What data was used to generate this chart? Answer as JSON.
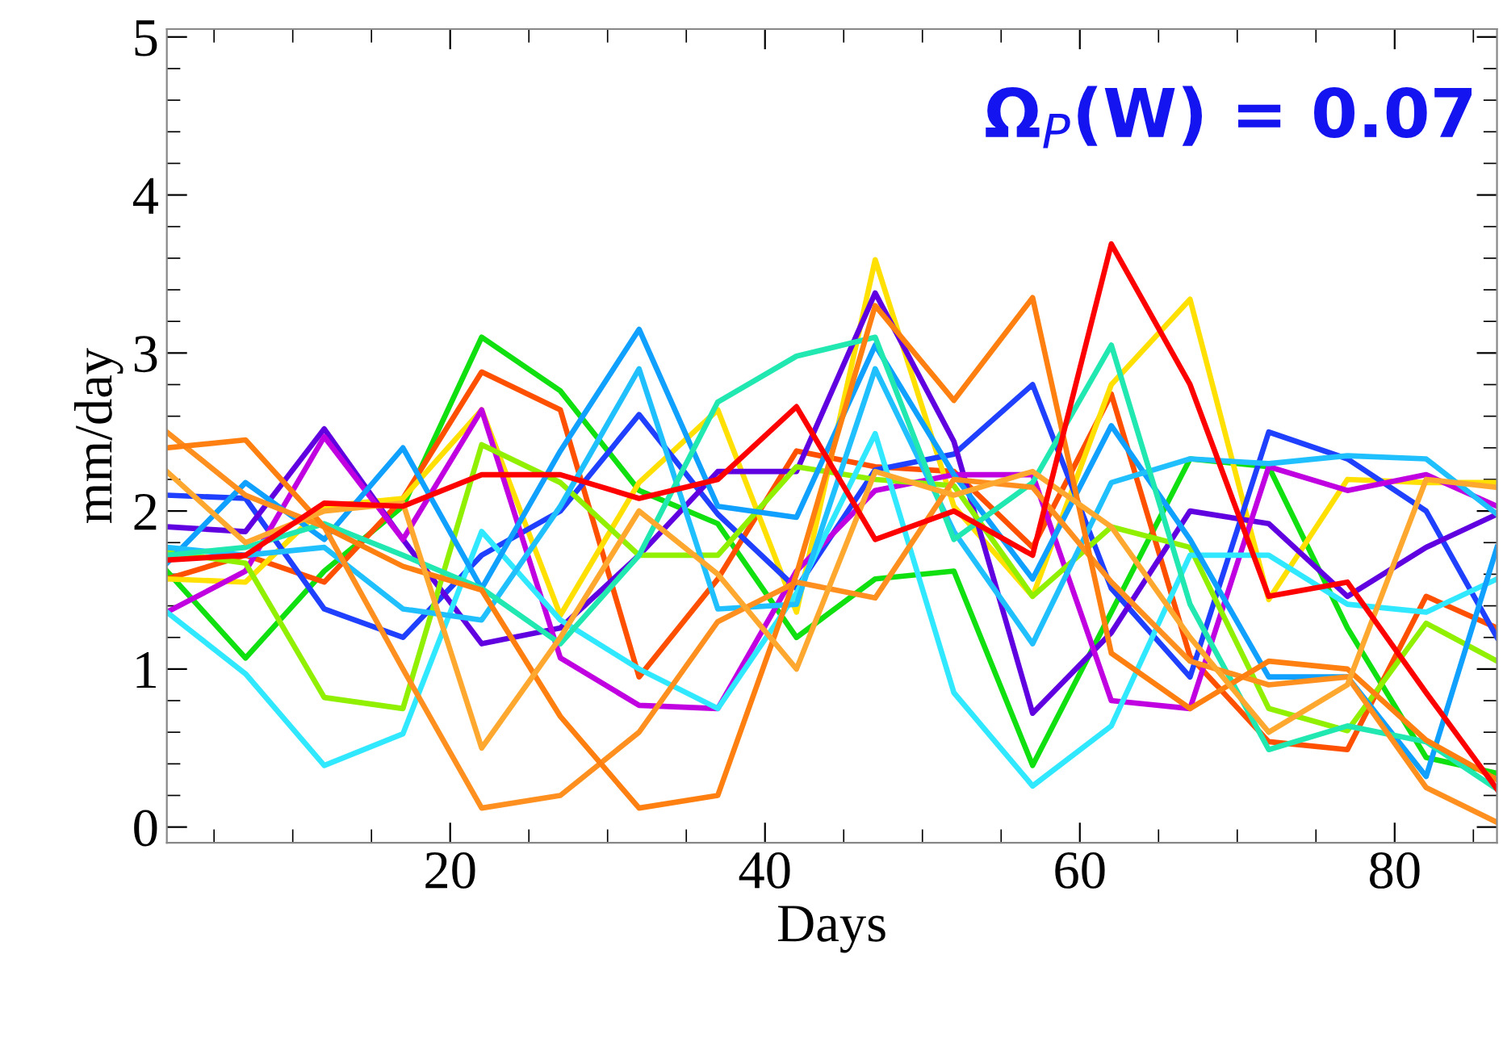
{
  "chart_data": {
    "type": "line",
    "xlabel": "Days",
    "ylabel": "mm/day",
    "annotations": [
      "Ω$_{P}$(W) = 0.07"
    ],
    "x": [
      2,
      7,
      12,
      17,
      22,
      27,
      32,
      37,
      42,
      47,
      52,
      57,
      62,
      67,
      72,
      77,
      82,
      86.5
    ],
    "series": [
      {
        "color": "#10e010",
        "values": [
          1.62,
          1.07,
          1.62,
          2.03,
          3.1,
          2.76,
          2.13,
          1.92,
          1.2,
          1.57,
          1.62,
          0.39,
          1.36,
          2.33,
          2.28,
          1.26,
          0.44,
          0.34
        ]
      },
      {
        "color": "#ff5000",
        "values": [
          1.57,
          1.72,
          1.55,
          2.08,
          2.88,
          2.64,
          0.95,
          1.57,
          2.38,
          2.28,
          2.25,
          1.77,
          2.74,
          1.08,
          0.54,
          0.49,
          1.46,
          1.26
        ]
      },
      {
        "color": "#ffe000",
        "values": [
          1.57,
          1.55,
          2.03,
          2.08,
          2.64,
          1.34,
          2.18,
          2.64,
          1.36,
          3.59,
          2.03,
          1.46,
          2.8,
          3.34,
          1.44,
          2.2,
          2.18,
          2.18
        ]
      },
      {
        "color": "#2040ff",
        "values": [
          2.1,
          2.08,
          1.38,
          1.2,
          1.72,
          2.0,
          2.61,
          1.98,
          1.51,
          2.26,
          2.36,
          2.8,
          1.51,
          0.95,
          2.5,
          2.33,
          2.0,
          1.2
        ]
      },
      {
        "color": "#6000e0",
        "values": [
          1.9,
          1.87,
          2.52,
          1.82,
          1.16,
          1.26,
          1.72,
          2.25,
          2.25,
          3.38,
          2.44,
          0.72,
          1.23,
          2.0,
          1.92,
          1.46,
          1.77,
          1.98
        ]
      },
      {
        "color": "#c000e0",
        "values": [
          1.36,
          1.62,
          2.47,
          1.82,
          2.64,
          1.07,
          0.77,
          0.75,
          1.62,
          2.13,
          2.23,
          2.23,
          0.8,
          0.75,
          2.28,
          2.13,
          2.23,
          2.03
        ]
      },
      {
        "color": "#90f000",
        "values": [
          1.74,
          1.67,
          0.82,
          0.75,
          2.42,
          2.18,
          1.72,
          1.72,
          2.28,
          2.2,
          2.16,
          1.46,
          1.9,
          1.77,
          0.75,
          0.61,
          1.29,
          1.05
        ]
      },
      {
        "color": "#30e8ff",
        "values": [
          1.36,
          0.97,
          0.39,
          0.59,
          1.87,
          1.31,
          1.0,
          0.75,
          1.48,
          2.49,
          0.85,
          0.26,
          0.64,
          1.72,
          1.72,
          1.41,
          1.36,
          1.57
        ]
      },
      {
        "color": "#10a0ff",
        "values": [
          1.67,
          2.18,
          1.82,
          2.4,
          1.51,
          2.38,
          3.15,
          2.03,
          1.96,
          3.05,
          2.23,
          1.57,
          2.54,
          1.82,
          0.95,
          0.95,
          0.32,
          1.77
        ]
      },
      {
        "color": "#20c0ff",
        "values": [
          1.77,
          1.72,
          1.77,
          1.38,
          1.31,
          2.03,
          2.9,
          1.38,
          1.41,
          2.9,
          1.87,
          1.16,
          2.18,
          2.33,
          2.3,
          2.35,
          2.33,
          1.98
        ]
      },
      {
        "color": "#20e8b0",
        "values": [
          1.72,
          1.77,
          1.92,
          1.72,
          1.51,
          1.16,
          1.72,
          2.69,
          2.98,
          3.1,
          1.82,
          2.18,
          3.05,
          1.41,
          0.49,
          0.64,
          0.54,
          0.24
        ]
      },
      {
        "color": "#ff9020",
        "values": [
          2.5,
          2.1,
          1.9,
          1.0,
          0.12,
          0.2,
          0.6,
          1.3,
          1.55,
          1.45,
          2.2,
          2.15,
          1.55,
          1.05,
          0.9,
          0.95,
          0.25,
          0.03
        ]
      },
      {
        "color": "#ff8010",
        "values": [
          2.4,
          2.45,
          1.9,
          1.65,
          1.5,
          0.7,
          0.12,
          0.2,
          1.6,
          3.3,
          2.7,
          3.35,
          1.1,
          0.75,
          1.05,
          1.0,
          0.55,
          0.3
        ]
      },
      {
        "color": "#ffa830",
        "values": [
          2.25,
          1.8,
          2.0,
          2.05,
          0.5,
          1.2,
          2.0,
          1.6,
          1.0,
          2.25,
          2.1,
          2.25,
          1.9,
          1.2,
          0.6,
          0.9,
          2.2,
          2.15
        ]
      },
      {
        "color": "#ff0000",
        "values": [
          1.69,
          1.72,
          2.05,
          2.03,
          2.23,
          2.23,
          2.08,
          2.2,
          2.66,
          1.82,
          2.0,
          1.72,
          3.69,
          2.8,
          1.46,
          1.55,
          0.85,
          0.24
        ]
      }
    ],
    "xlim": [
      2,
      86.5
    ],
    "ylim": [
      -0.1,
      5.05
    ],
    "xticks": [
      20,
      40,
      60,
      80
    ],
    "yticks": [
      0,
      1,
      2,
      3,
      4,
      5
    ],
    "grid": false,
    "legend": false,
    "marker": "none",
    "line_style": "solid"
  }
}
